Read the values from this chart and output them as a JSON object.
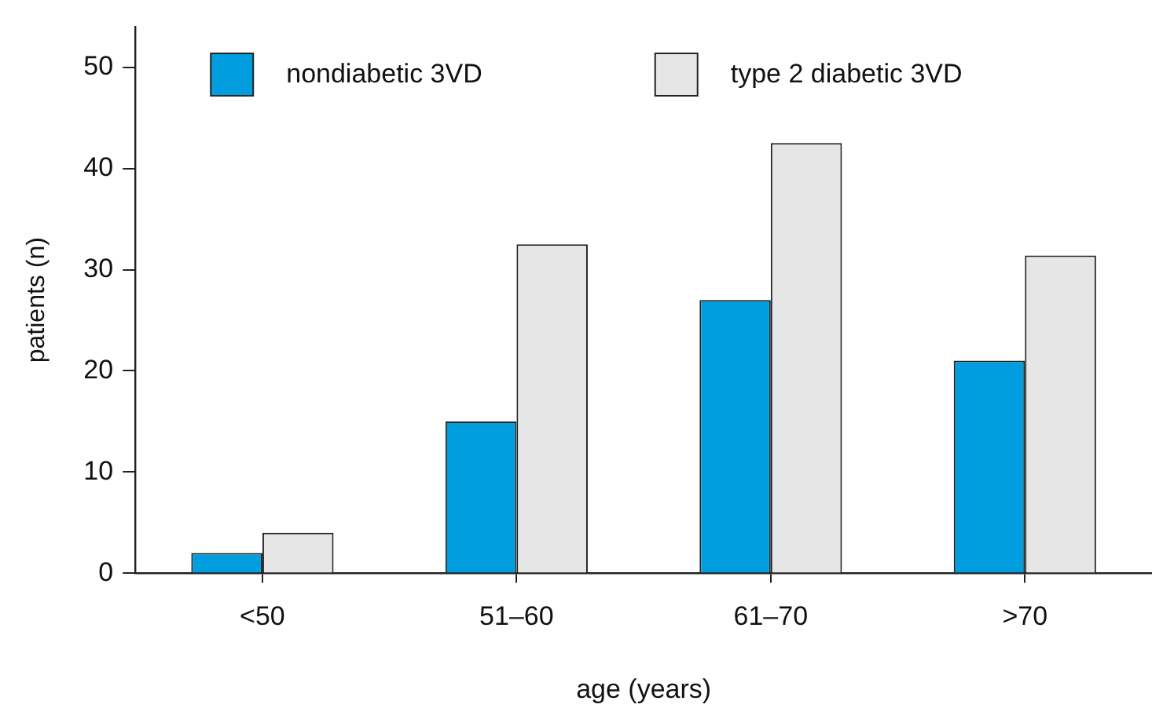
{
  "chart_data": {
    "type": "bar",
    "xlabel": "age (years)",
    "ylabel": "patients (n)",
    "categories": [
      "<50",
      "51–60",
      "61–70",
      ">70"
    ],
    "series": [
      {
        "name": "nondiabetic 3VD",
        "color": "#009ddf",
        "values": [
          2,
          15,
          27,
          21
        ]
      },
      {
        "name": "type 2 diabetic 3VD",
        "color": "#e6e6e6",
        "values": [
          4,
          32.5,
          42.5,
          31.4
        ]
      }
    ],
    "ylim": [
      0,
      54
    ],
    "yticks": [
      0,
      10,
      20,
      30,
      40,
      50
    ],
    "grid": false,
    "legend": "top left"
  }
}
